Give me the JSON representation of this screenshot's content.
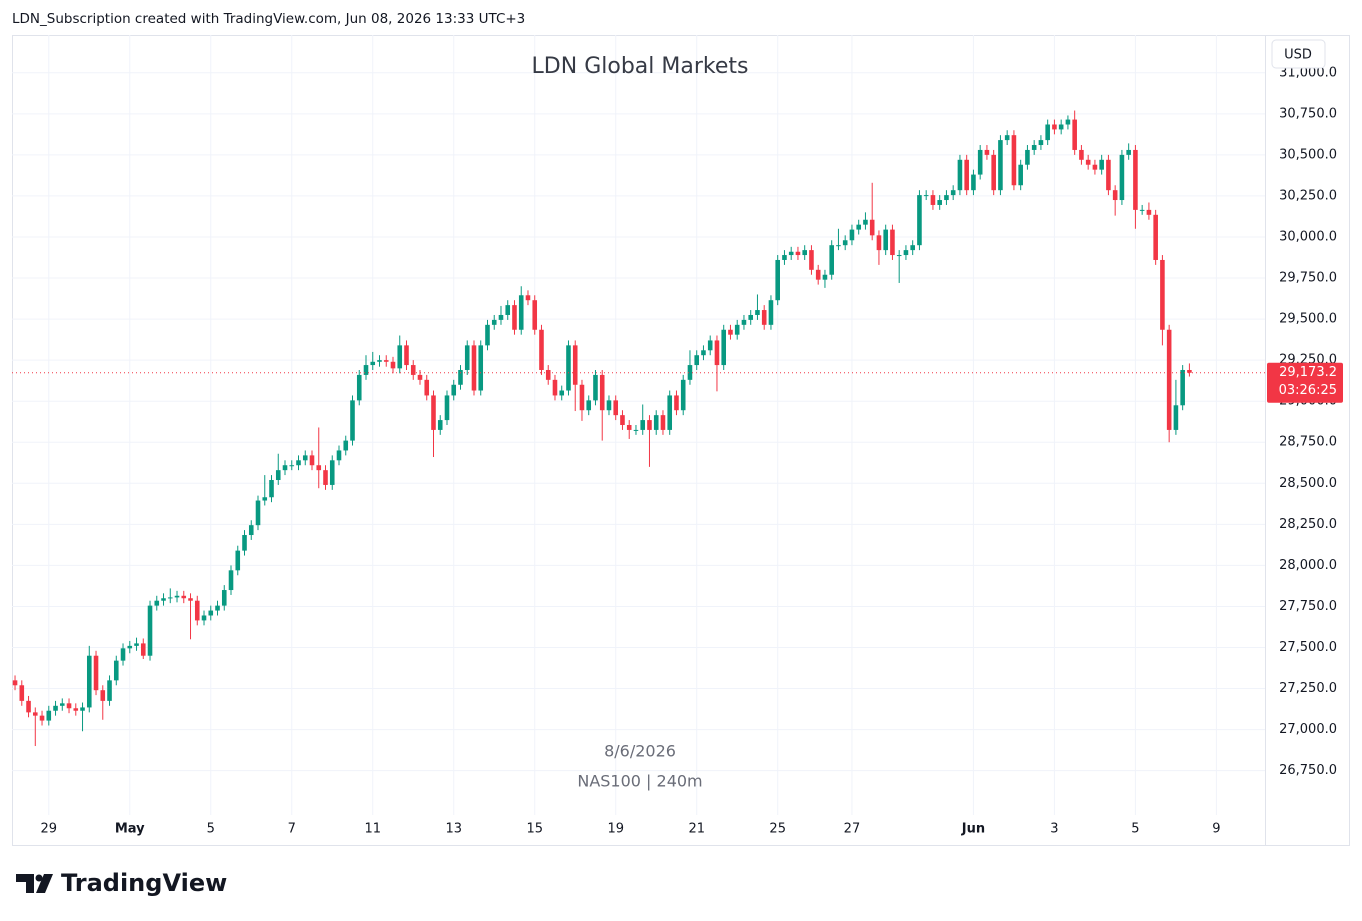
{
  "header": {
    "text": "LDN_Subscription created with TradingView.com, Jun 08, 2026 13:33 UTC+3"
  },
  "footer": {
    "logo_text": "TradingView"
  },
  "chart_data": {
    "type": "candlestick",
    "title": "LDN Global Markets",
    "annotations": [
      "8/6/2026",
      "NAS100 | 240m"
    ],
    "currency": "USD",
    "last_price": {
      "value": 29173.2,
      "label": "29,173.2"
    },
    "countdown": "03:26:25",
    "up_color": "#089981",
    "down_color": "#f23645",
    "grid": true,
    "xlim": [
      -0.45,
      185.2
    ],
    "xticks": [
      {
        "value": 5,
        "label": "29"
      },
      {
        "value": 17,
        "label": "May",
        "bold": true
      },
      {
        "value": 29,
        "label": "5"
      },
      {
        "value": 41,
        "label": "7"
      },
      {
        "value": 53,
        "label": "11"
      },
      {
        "value": 65,
        "label": "13"
      },
      {
        "value": 77,
        "label": "15"
      },
      {
        "value": 89,
        "label": "19"
      },
      {
        "value": 101,
        "label": "21"
      },
      {
        "value": 113,
        "label": "25"
      },
      {
        "value": 124,
        "label": "27"
      },
      {
        "value": 142,
        "label": "Jun",
        "bold": true
      },
      {
        "value": 154,
        "label": "3"
      },
      {
        "value": 166,
        "label": "5"
      },
      {
        "value": 178,
        "label": "9"
      }
    ],
    "ylim": [
      26480,
      31230
    ],
    "yticks": [
      {
        "value": 26750,
        "label": "26,750.0"
      },
      {
        "value": 27000,
        "label": "27,000.0"
      },
      {
        "value": 27250,
        "label": "27,250.0"
      },
      {
        "value": 27500,
        "label": "27,500.0"
      },
      {
        "value": 27750,
        "label": "27,750.0"
      },
      {
        "value": 28000,
        "label": "28,000.0"
      },
      {
        "value": 28250,
        "label": "28,250.0"
      },
      {
        "value": 28500,
        "label": "28,500.0"
      },
      {
        "value": 28750,
        "label": "28,750.0"
      },
      {
        "value": 29000,
        "label": "29,000.0"
      },
      {
        "value": 29250,
        "label": "29,250.0"
      },
      {
        "value": 29500,
        "label": "29,500.0"
      },
      {
        "value": 29750,
        "label": "29,750.0"
      },
      {
        "value": 30000,
        "label": "30,000.0"
      },
      {
        "value": 30250,
        "label": "30,250.0"
      },
      {
        "value": 30500,
        "label": "30,500.0"
      },
      {
        "value": 30750,
        "label": "30,750.0"
      },
      {
        "value": 31000,
        "label": "31,000.0"
      }
    ],
    "open": [
      27300,
      27270,
      27175,
      27105,
      27085,
      27055,
      27115,
      27145,
      27160,
      27130,
      27115,
      27135,
      27450,
      27240,
      27175,
      27300,
      27420,
      27495,
      27510,
      27525,
      27450,
      27755,
      27785,
      27800,
      27805,
      27815,
      27800,
      27785,
      27665,
      27695,
      27725,
      27755,
      27850,
      27970,
      28090,
      28185,
      28245,
      28395,
      28415,
      28520,
      28580,
      28610,
      28610,
      28640,
      28670,
      28610,
      28580,
      28490,
      28640,
      28700,
      28760,
      29005,
      29160,
      29220,
      29240,
      29250,
      29240,
      29200,
      29340,
      29220,
      29160,
      29130,
      29035,
      28825,
      28885,
      29035,
      29100,
      29190,
      29340,
      29065,
      29340,
      29465,
      29495,
      29525,
      29585,
      29435,
      29645,
      29615,
      29435,
      29190,
      29130,
      29035,
      29065,
      29340,
      29100,
      28945,
      29005,
      29160,
      28945,
      29005,
      28915,
      28855,
      28825,
      28825,
      28885,
      28825,
      28915,
      28825,
      29035,
      28945,
      29130,
      29220,
      29280,
      29310,
      29370,
      29220,
      29435,
      29405,
      29465,
      29495,
      29525,
      29555,
      29465,
      29615,
      29860,
      29890,
      29910,
      29890,
      29920,
      29800,
      29740,
      29770,
      29950,
      29950,
      29980,
      30045,
      30075,
      30105,
      30010,
      29920,
      30045,
      29890,
      29890,
      29920,
      29950,
      30255,
      30255,
      30195,
      30225,
      30255,
      30285,
      30470,
      30285,
      30380,
      30530,
      30500,
      30285,
      30590,
      30620,
      30315,
      30440,
      30530,
      30560,
      30590,
      30685,
      30655,
      30685,
      30715,
      30530,
      30470,
      30440,
      30410,
      30470,
      30285,
      30225,
      30500,
      30530,
      30165,
      30165,
      30135,
      29860,
      29435,
      28825,
      28975,
      29190
    ],
    "high": [
      27330,
      27300,
      27205,
      27135,
      27115,
      27145,
      27175,
      27190,
      27190,
      27160,
      27165,
      27510,
      27480,
      27270,
      27330,
      27450,
      27525,
      27540,
      27560,
      27555,
      27785,
      27815,
      27830,
      27860,
      27845,
      27845,
      27830,
      27815,
      27725,
      27755,
      27785,
      27880,
      28000,
      28120,
      28215,
      28275,
      28425,
      28550,
      28550,
      28680,
      28640,
      28640,
      28670,
      28700,
      28700,
      28840,
      28610,
      28670,
      28730,
      28790,
      29035,
      29190,
      29280,
      29300,
      29280,
      29280,
      29270,
      29400,
      29370,
      29250,
      29190,
      29160,
      29065,
      28915,
      29065,
      29130,
      29220,
      29370,
      29370,
      29370,
      29495,
      29525,
      29580,
      29615,
      29615,
      29700,
      29675,
      29645,
      29465,
      29220,
      29160,
      29095,
      29370,
      29370,
      29130,
      29035,
      29190,
      29190,
      29035,
      29035,
      28945,
      28885,
      28855,
      28980,
      28915,
      28945,
      28945,
      29065,
      29065,
      29160,
      29310,
      29310,
      29340,
      29400,
      29400,
      29465,
      29465,
      29495,
      29525,
      29555,
      29650,
      29585,
      29645,
      29890,
      29920,
      29940,
      29940,
      29950,
      29950,
      29830,
      29800,
      29980,
      30050,
      30010,
      30075,
      30105,
      30150,
      30330,
      30040,
      30075,
      30075,
      29920,
      29950,
      29980,
      30285,
      30285,
      30285,
      30255,
      30285,
      30315,
      30500,
      30500,
      30410,
      30560,
      30560,
      30530,
      30620,
      30650,
      30650,
      30470,
      30560,
      30590,
      30620,
      30715,
      30715,
      30715,
      30740,
      30770,
      30560,
      30500,
      30470,
      30500,
      30500,
      30315,
      30530,
      30570,
      30560,
      30195,
      30210,
      30165,
      29890,
      29465,
      29130,
      29220,
      29230
    ],
    "low": [
      27240,
      27145,
      27075,
      26900,
      27025,
      27025,
      27085,
      27115,
      27100,
      27085,
      26990,
      27105,
      27210,
      27060,
      27145,
      27270,
      27390,
      27465,
      27480,
      27430,
      27420,
      27725,
      27755,
      27770,
      27775,
      27770,
      27550,
      27635,
      27635,
      27665,
      27695,
      27725,
      27820,
      27940,
      28060,
      28155,
      28215,
      28365,
      28385,
      28490,
      28550,
      28580,
      28580,
      28610,
      28580,
      28470,
      28460,
      28460,
      28610,
      28670,
      28730,
      28975,
      29130,
      29190,
      29210,
      29210,
      29170,
      29170,
      29190,
      29130,
      29100,
      29005,
      28660,
      28795,
      28855,
      29005,
      29070,
      29160,
      29035,
      29035,
      29310,
      29435,
      29465,
      29495,
      29405,
      29405,
      29585,
      29405,
      29160,
      29100,
      29005,
      29005,
      29035,
      28940,
      28880,
      28915,
      28975,
      28760,
      28915,
      28885,
      28825,
      28770,
      28795,
      28795,
      28600,
      28795,
      28795,
      28795,
      28915,
      28915,
      29100,
      29190,
      29250,
      29280,
      29060,
      29190,
      29375,
      29375,
      29435,
      29465,
      29495,
      29435,
      29435,
      29585,
      29830,
      29860,
      29860,
      29860,
      29770,
      29710,
      29690,
      29740,
      29920,
      29920,
      29950,
      30015,
      30045,
      29980,
      29830,
      29890,
      29860,
      29720,
      29860,
      29890,
      29920,
      30225,
      30165,
      30165,
      30195,
      30225,
      30255,
      30255,
      30255,
      30350,
      30470,
      30255,
      30255,
      30560,
      30285,
      30285,
      30410,
      30500,
      30530,
      30560,
      30625,
      30625,
      30655,
      30500,
      30440,
      30410,
      30380,
      30380,
      30255,
      30130,
      30195,
      30470,
      30050,
      30135,
      30105,
      29830,
      29340,
      28750,
      28795,
      28945,
      29150
    ],
    "close": [
      27270,
      27175,
      27105,
      27085,
      27055,
      27115,
      27145,
      27160,
      27130,
      27115,
      27135,
      27450,
      27240,
      27175,
      27300,
      27420,
      27495,
      27510,
      27525,
      27450,
      27755,
      27785,
      27800,
      27805,
      27815,
      27800,
      27785,
      27665,
      27695,
      27725,
      27755,
      27850,
      27970,
      28090,
      28185,
      28245,
      28395,
      28415,
      28520,
      28580,
      28610,
      28610,
      28640,
      28670,
      28610,
      28580,
      28490,
      28640,
      28700,
      28760,
      29005,
      29160,
      29220,
      29240,
      29250,
      29240,
      29200,
      29340,
      29220,
      29160,
      29130,
      29035,
      28825,
      28885,
      29035,
      29100,
      29190,
      29340,
      29065,
      29340,
      29465,
      29495,
      29525,
      29585,
      29435,
      29645,
      29615,
      29435,
      29190,
      29130,
      29035,
      29065,
      29340,
      29100,
      28945,
      29005,
      29160,
      28945,
      29005,
      28915,
      28855,
      28825,
      28825,
      28885,
      28825,
      28915,
      28825,
      29035,
      28945,
      29130,
      29220,
      29280,
      29310,
      29370,
      29220,
      29435,
      29405,
      29465,
      29495,
      29525,
      29555,
      29465,
      29615,
      29860,
      29890,
      29910,
      29890,
      29920,
      29800,
      29740,
      29770,
      29950,
      29950,
      29980,
      30045,
      30075,
      30105,
      30010,
      29920,
      30045,
      29890,
      29890,
      29920,
      29950,
      30255,
      30255,
      30195,
      30225,
      30255,
      30285,
      30470,
      30285,
      30380,
      30530,
      30500,
      30285,
      30590,
      30620,
      30315,
      30440,
      30530,
      30560,
      30590,
      30685,
      30655,
      30685,
      30715,
      30530,
      30470,
      30440,
      30410,
      30470,
      30285,
      30225,
      30500,
      30530,
      30165,
      30165,
      30135,
      29860,
      29435,
      28825,
      28975,
      29190,
      29173.2
    ]
  }
}
